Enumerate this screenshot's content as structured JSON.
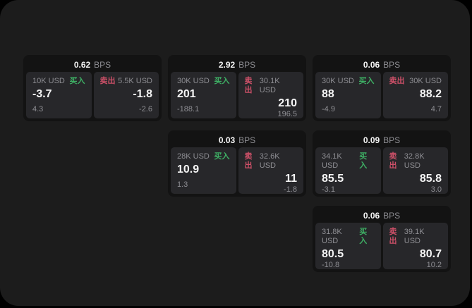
{
  "colors": {
    "page_bg": "#000000",
    "panel_bg": "#1c1c1c",
    "card_bg": "#131313",
    "tile_bg": "#27272a",
    "text_bright": "#f5f5f5",
    "text_muted": "#8e8e93",
    "buy_green": "#3eaf64",
    "sell_red": "#cd5068"
  },
  "labels": {
    "bps_unit": "BPS",
    "buy": "买入",
    "sell": "卖出"
  },
  "cards": [
    {
      "row": 1,
      "col": 1,
      "bps": "0.62",
      "buy": {
        "amount": "10K USD",
        "price": "-3.7",
        "delta": "4.3"
      },
      "sell": {
        "amount": "5.5K USD",
        "price": "-1.8",
        "delta": "-2.6"
      }
    },
    {
      "row": 1,
      "col": 2,
      "bps": "2.92",
      "buy": {
        "amount": "30K USD",
        "price": "201",
        "delta": "-188.1"
      },
      "sell": {
        "amount": "30.1K USD",
        "price": "210",
        "delta": "196.5"
      }
    },
    {
      "row": 1,
      "col": 3,
      "bps": "0.06",
      "buy": {
        "amount": "30K USD",
        "price": "88",
        "delta": "-4.9"
      },
      "sell": {
        "amount": "30K USD",
        "price": "88.2",
        "delta": "4.7"
      }
    },
    {
      "row": 2,
      "col": 2,
      "bps": "0.03",
      "buy": {
        "amount": "28K USD",
        "price": "10.9",
        "delta": "1.3"
      },
      "sell": {
        "amount": "32.6K USD",
        "price": "11",
        "delta": "-1.8"
      }
    },
    {
      "row": 2,
      "col": 3,
      "bps": "0.09",
      "buy": {
        "amount": "34.1K USD",
        "price": "85.5",
        "delta": "-3.1"
      },
      "sell": {
        "amount": "32.8K USD",
        "price": "85.8",
        "delta": "3.0"
      }
    },
    {
      "row": 3,
      "col": 3,
      "bps": "0.06",
      "buy": {
        "amount": "31.8K USD",
        "price": "80.5",
        "delta": "-10.8"
      },
      "sell": {
        "amount": "39.1K USD",
        "price": "80.7",
        "delta": "10.2"
      }
    }
  ]
}
